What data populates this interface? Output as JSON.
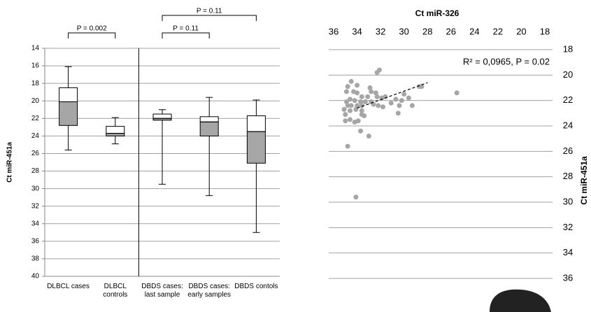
{
  "chart_data": [
    {
      "type": "box",
      "y_label": "Ct miR-451a",
      "categories": [
        "DLBCL cases",
        "DLBCL controls",
        "DBDS cases: last sample",
        "DBDS cases: early samples",
        "DBDS contols"
      ],
      "boxes": [
        {
          "min": 16.1,
          "q1": 18.5,
          "median": 20.1,
          "q3": 22.8,
          "max": 25.6
        },
        {
          "min": 21.9,
          "q1": 22.9,
          "median": 23.7,
          "q3": 24.0,
          "max": 24.9
        },
        {
          "min": 21.0,
          "q1": 21.5,
          "median": 22.0,
          "q3": 22.2,
          "max": 29.5
        },
        {
          "min": 19.6,
          "q1": 21.8,
          "median": 22.4,
          "q3": 24.0,
          "max": 30.8
        },
        {
          "min": 19.9,
          "q1": 21.7,
          "median": 23.5,
          "q3": 27.1,
          "max": 35.0
        }
      ],
      "box_colors": [
        "#ffffff",
        "#a6a6a6"
      ],
      "annotations": [
        "P = 0.002",
        "P = 0.11",
        "P = 0.11"
      ],
      "ylim": [
        14,
        40
      ],
      "yticks": [
        14,
        16,
        18,
        20,
        22,
        24,
        26,
        28,
        30,
        32,
        34,
        36,
        38,
        40
      ],
      "grid": true
    },
    {
      "type": "scatter",
      "title": "Ct miR-326",
      "y_label": "Ct miR-451a",
      "color": "#a6a6a6",
      "x": [
        32.1,
        32.3,
        34.5,
        34.0,
        34.8,
        32.9,
        34.9,
        34.3,
        32.8,
        32.4,
        34.0,
        33.6,
        33.1,
        32.3,
        31.6,
        34.6,
        34.2,
        34.9,
        33.7,
        33.3,
        32.8,
        31.9,
        30.7,
        30.2,
        30.0,
        29.6,
        28.7,
        28.5,
        25.5,
        34.8,
        34.5,
        34.0,
        33.6,
        32.6,
        31.8,
        31.1,
        30.4,
        29.3,
        35.1,
        34.6,
        34.1,
        33.6,
        32.2,
        35.0,
        33.6,
        33.4,
        30.5,
        35.0,
        34.6,
        34.2,
        33.9,
        33.7,
        33.0,
        34.8,
        34.1
      ],
      "y": [
        19.6,
        19.8,
        20.5,
        20.8,
        20.9,
        21.0,
        21.3,
        21.3,
        21.3,
        21.4,
        21.4,
        21.7,
        21.7,
        21.7,
        21.7,
        21.9,
        22.0,
        22.1,
        22.1,
        22.1,
        22.1,
        21.8,
        21.9,
        22.0,
        21.5,
        21.8,
        20.9,
        20.9,
        21.4,
        22.4,
        22.4,
        22.4,
        22.4,
        22.3,
        22.5,
        22.2,
        22.4,
        22.4,
        22.7,
        22.8,
        22.7,
        22.8,
        22.4,
        23.1,
        23.1,
        23.2,
        23.0,
        23.6,
        23.5,
        23.7,
        23.6,
        24.4,
        24.8,
        25.6,
        29.6
      ],
      "trendline": {
        "x": [
          34.0,
          28.0
        ],
        "y": [
          22.6,
          20.6
        ]
      },
      "annotation": "R² = 0,0965, P = 0.02",
      "xlim": [
        36,
        18
      ],
      "xticks": [
        36,
        34,
        32,
        30,
        28,
        26,
        24,
        22,
        20,
        18
      ],
      "ylim": [
        18,
        36
      ],
      "yticks": [
        18,
        20,
        22,
        24,
        26,
        28,
        30,
        32,
        34,
        36
      ],
      "grid": true
    }
  ]
}
